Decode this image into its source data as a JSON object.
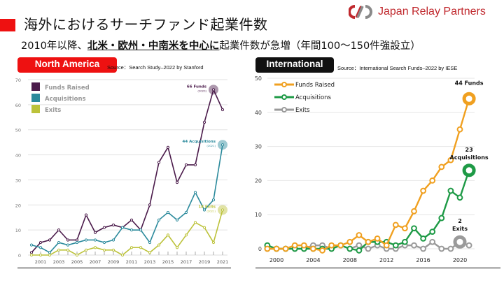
{
  "header": {
    "title": "海外におけるサーチファンド起業件数",
    "subtitle_pre": "2010年以降、",
    "subtitle_emph": "北米・欧州・中南米を中心に",
    "subtitle_post": "起業件数が急増（年間100～150件強設立）",
    "logo_text": "Japan Relay Partners",
    "accent_color": "#ee1111",
    "brand_color": "#c0282d"
  },
  "chart_data": [
    {
      "type": "line",
      "badge": "North America",
      "source": "Source：Search Study–2022 by Stanford",
      "title": "",
      "xlabel": "",
      "ylabel": "",
      "x": [
        2000,
        2001,
        2002,
        2003,
        2004,
        2005,
        2006,
        2007,
        2008,
        2009,
        2010,
        2011,
        2012,
        2013,
        2014,
        2015,
        2016,
        2017,
        2018,
        2019,
        2020,
        2021
      ],
      "xticks": [
        "2001",
        "2003",
        "2005",
        "2007",
        "2009",
        "2011",
        "2013",
        "2015",
        "2017",
        "2019",
        "2021"
      ],
      "yticks": [
        "0",
        "10",
        "20",
        "30",
        "40",
        "50",
        "60",
        "70"
      ],
      "ylim": [
        0,
        70
      ],
      "grid": true,
      "legend_position": "top-left",
      "series": [
        {
          "name": "Funds Raised",
          "color": "#4a1a4a",
          "values": [
            1,
            5,
            6,
            10,
            6,
            6,
            16,
            9,
            11,
            12,
            11,
            14,
            10,
            20,
            37,
            43,
            29,
            36,
            36,
            53,
            66,
            58
          ]
        },
        {
          "name": "Acquisitions",
          "color": "#2b8a9c",
          "values": [
            4,
            3,
            1,
            5,
            4,
            5,
            6,
            6,
            5,
            6,
            11,
            10,
            10,
            5,
            14,
            17,
            14,
            17,
            25,
            18,
            22,
            44
          ]
        },
        {
          "name": "Exits",
          "color": "#bcc23a",
          "values": [
            0,
            0,
            0,
            2,
            2,
            0,
            2,
            3,
            2,
            2,
            0,
            3,
            3,
            1,
            4,
            8,
            3,
            8,
            13,
            11,
            5,
            18
          ]
        }
      ],
      "annotations": [
        {
          "series": "Funds Raised",
          "year": 2020,
          "label": "66 Funds",
          "sub": "(2020)"
        },
        {
          "series": "Acquisitions",
          "year": 2021,
          "label": "44 Acquisitions",
          "sub": "(2021)"
        },
        {
          "series": "Exits",
          "year": 2021,
          "label": "18 Exits",
          "sub": "(2021)"
        }
      ]
    },
    {
      "type": "line",
      "badge": "International",
      "source": "Source：International Search Funds–2022 by IESE",
      "title": "",
      "xlabel": "",
      "ylabel": "",
      "x": [
        1999,
        2000,
        2001,
        2002,
        2003,
        2004,
        2005,
        2006,
        2007,
        2008,
        2009,
        2010,
        2011,
        2012,
        2013,
        2014,
        2015,
        2016,
        2017,
        2018,
        2019,
        2020,
        2021
      ],
      "xticks": [
        "2000",
        "2004",
        "2008",
        "2012",
        "2016",
        "2020"
      ],
      "yticks": [
        "0",
        "10",
        "20",
        "30",
        "40",
        "50"
      ],
      "ylim": [
        0,
        50
      ],
      "grid": true,
      "legend_position": "top-left",
      "series": [
        {
          "name": "Funds Raised",
          "color": "#f0a020",
          "values": [
            0,
            0,
            0,
            1,
            1,
            0,
            -0.5,
            1,
            1,
            2,
            4,
            2,
            3,
            1,
            7,
            6,
            11,
            17,
            20,
            24,
            26,
            35,
            44
          ]
        },
        {
          "name": "Acquisitions",
          "color": "#1e9a46",
          "values": [
            1,
            0,
            0,
            0,
            0,
            0,
            0,
            0,
            1,
            0,
            -0.5,
            2,
            2,
            2,
            1,
            2,
            6,
            3,
            5,
            9,
            17,
            15,
            23
          ]
        },
        {
          "name": "Exits",
          "color": "#9a9a9a",
          "values": [
            0,
            0,
            0,
            0,
            0,
            1,
            1,
            0,
            1,
            0,
            1,
            0,
            1,
            0,
            0,
            1,
            1,
            0,
            2,
            0,
            0,
            2,
            1
          ]
        }
      ],
      "annotations": [
        {
          "series": "Funds Raised",
          "year": 2021,
          "label": "44 Funds",
          "sub": ""
        },
        {
          "series": "Acquisitions",
          "year": 2021,
          "label": "23",
          "sub": "Acquisitions"
        },
        {
          "series": "Exits",
          "year": 2020,
          "label": "2",
          "sub": "Exits"
        }
      ]
    }
  ]
}
